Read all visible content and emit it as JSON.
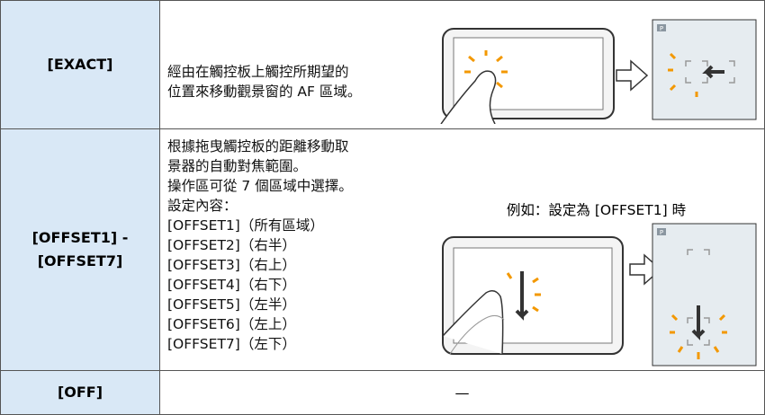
{
  "table": {
    "rows": [
      {
        "label": "[EXACT]",
        "description": [
          "經由在觸控板上觸控所期望的",
          "位置來移動觀景窗的 AF 區域。"
        ],
        "screen_label": "P"
      },
      {
        "label": "[OFFSET1] -\n[OFFSET7]",
        "description": [
          "根據拖曳觸控板的距離移動取",
          "景器的自動對焦範圍。",
          "操作區可從 7 個區域中選擇。",
          "設定內容：",
          "[OFFSET1]（所有區域）",
          "[OFFSET2]（右半）",
          "[OFFSET3]（右上）",
          "[OFFSET4]（右下）",
          "[OFFSET5]（左半）",
          "[OFFSET6]（左上）",
          "[OFFSET7]（左下）"
        ],
        "caption": "例如：設定為 [OFFSET1] 時",
        "screen_label": "P"
      },
      {
        "label": "[OFF]",
        "description": "—"
      }
    ]
  }
}
